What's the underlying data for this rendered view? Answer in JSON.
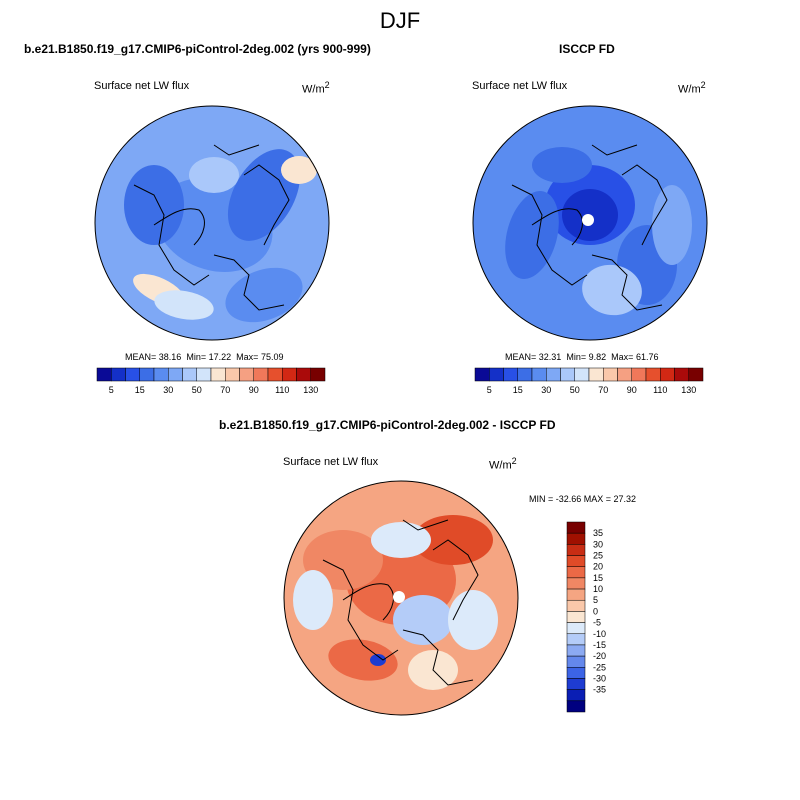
{
  "page_title": "DJF",
  "panels": {
    "left": {
      "case_title": "b.e21.B1850.f19_g17.CMIP6-piControl-2deg.002 (yrs 900-999)",
      "variable": "Surface net LW flux",
      "units_base": "W/m",
      "units_exp": "2",
      "stats": {
        "mean_label": "MEAN=",
        "mean": "38.16",
        "min_label": "Min=",
        "min": "17.22",
        "max_label": "Max=",
        "max": "75.09"
      }
    },
    "right": {
      "case_title": "ISCCP FD",
      "variable": "Surface net LW flux",
      "units_base": "W/m",
      "units_exp": "2",
      "stats": {
        "mean_label": "MEAN=",
        "mean": "32.31",
        "min_label": "Min=",
        "min": "9.82",
        "max_label": "Max=",
        "max": "61.76"
      }
    },
    "diff": {
      "case_title": "b.e21.B1850.f19_g17.CMIP6-piControl-2deg.002 - ISCCP FD",
      "variable": "Surface net LW flux",
      "units_base": "W/m",
      "units_exp": "2",
      "minmax": "MIN = -32.66 MAX =  27.32"
    }
  },
  "colors": {
    "abs_scale": [
      "#0a0a96",
      "#1430c8",
      "#2850e6",
      "#3c6ee6",
      "#5a8cf0",
      "#7ea8f5",
      "#aac8fa",
      "#d2e4fa",
      "#fae6d2",
      "#fac8aa",
      "#f5a082",
      "#f0785a",
      "#e6502d",
      "#d22814",
      "#aa0a0a",
      "#780000"
    ],
    "diff_scale": [
      "#000080",
      "#0a1eb4",
      "#1e3cd2",
      "#3c64e6",
      "#6488ec",
      "#8caaf2",
      "#b4ccf8",
      "#dceafa",
      "#fae6d2",
      "#fac8aa",
      "#f5a582",
      "#f08764",
      "#eb6946",
      "#e04b28",
      "#c82d14",
      "#a01000",
      "#780000"
    ]
  },
  "chart_data": [
    {
      "type": "heatmap",
      "projection": "north polar stereographic",
      "title": "Surface net LW flux",
      "subtitle": "b.e21.B1850.f19_g17.CMIP6-piControl-2deg.002 (yrs 900-999)",
      "units": "W/m2",
      "colorbar_levels": [
        5,
        10,
        15,
        20,
        30,
        40,
        50,
        60,
        70,
        80,
        90,
        100,
        110,
        120,
        130
      ],
      "colorbar_tick_labels": [
        "5",
        "15",
        "30",
        "50",
        "70",
        "90",
        "110",
        "130"
      ],
      "mean": 38.16,
      "min": 17.22,
      "max": 75.09
    },
    {
      "type": "heatmap",
      "projection": "north polar stereographic",
      "title": "Surface net LW flux",
      "subtitle": "ISCCP FD",
      "units": "W/m2",
      "colorbar_levels": [
        5,
        10,
        15,
        20,
        30,
        40,
        50,
        60,
        70,
        80,
        90,
        100,
        110,
        120,
        130
      ],
      "colorbar_tick_labels": [
        "5",
        "15",
        "30",
        "50",
        "70",
        "90",
        "110",
        "130"
      ],
      "mean": 32.31,
      "min": 9.82,
      "max": 61.76
    },
    {
      "type": "heatmap",
      "projection": "north polar stereographic",
      "title": "Surface net LW flux",
      "subtitle": "b.e21.B1850.f19_g17.CMIP6-piControl-2deg.002 - ISCCP FD",
      "units": "W/m2",
      "colorbar_levels": [
        -35,
        -30,
        -25,
        -20,
        -15,
        -10,
        -5,
        0,
        5,
        10,
        15,
        20,
        25,
        30,
        35
      ],
      "colorbar_tick_labels": [
        "35",
        "30",
        "25",
        "20",
        "15",
        "10",
        "5",
        "0",
        "-5",
        "-10",
        "-15",
        "-20",
        "-25",
        "-30",
        "-35"
      ],
      "min": -32.66,
      "max": 27.32
    }
  ]
}
